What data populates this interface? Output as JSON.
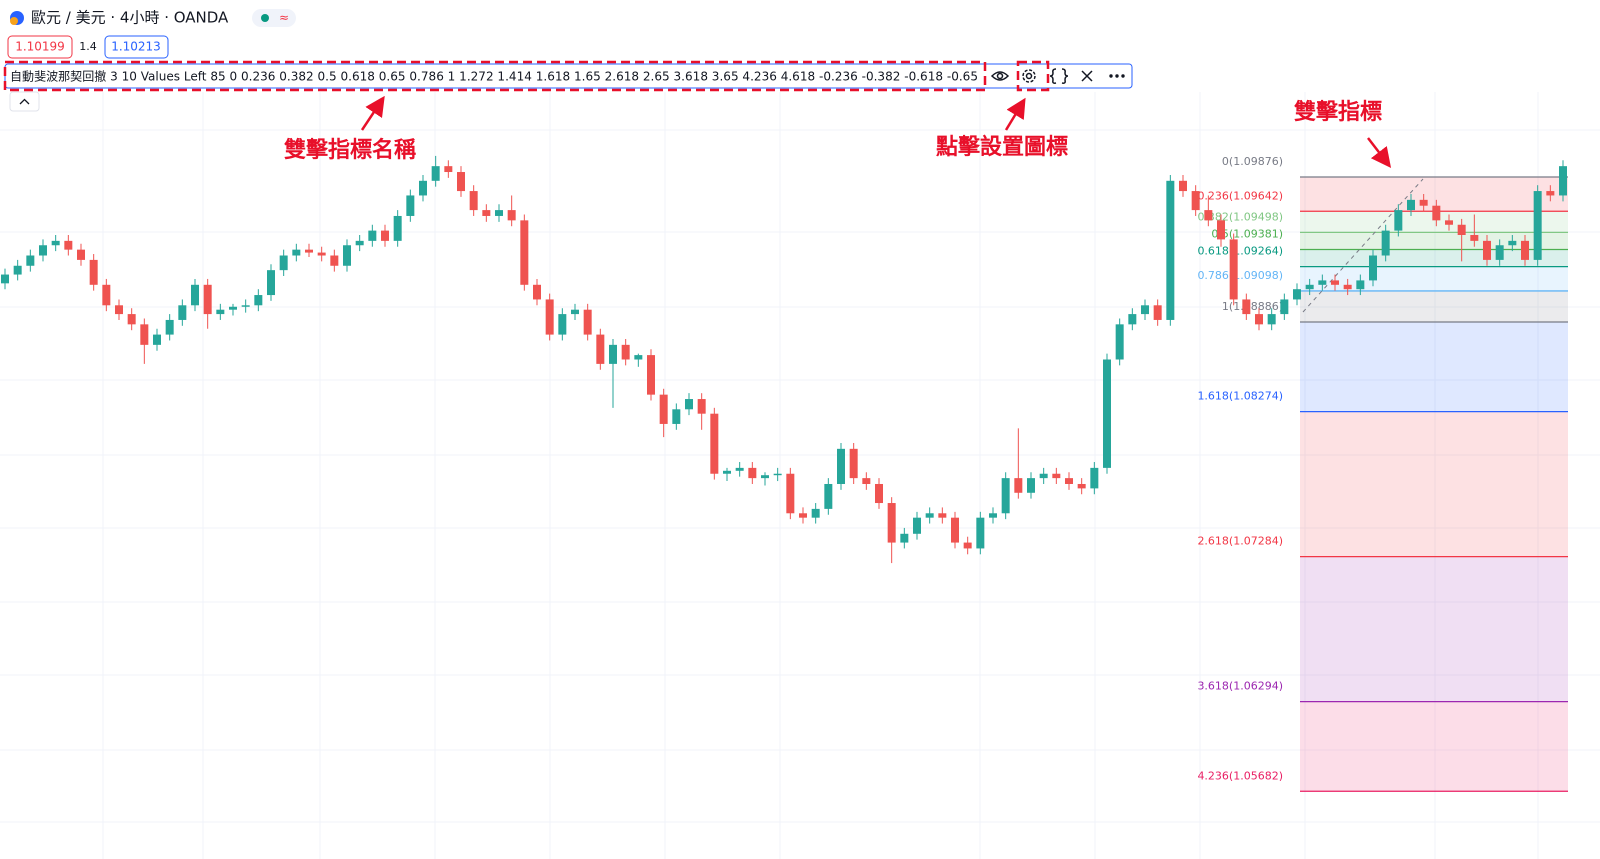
{
  "header": {
    "symbol": "歐元 / 美元 · 4小時 · OANDA",
    "sell_price": "1.10199",
    "spread": "1.4",
    "buy_price": "1.10213"
  },
  "indicator_legend": "自動斐波那契回撤 3 10 Values Left 85 0 0.236 0.382 0.5 0.618 0.65 0.786 1 1.272 1.414 1.618 1.65 2.618 2.65 3.618 3.65 4.236 4.618 -0.236 -0.382 -0.618 -0.65",
  "annotations": [
    "雙擊指標名稱",
    "點擊設置圖標",
    "雙擊指標"
  ],
  "chart_data": {
    "type": "candlestick",
    "up_color": "#26a69a",
    "down_color": "#ef5350",
    "candles": [
      [
        1.0915,
        1.0925,
        1.0911,
        1.0921
      ],
      [
        1.0921,
        1.0931,
        1.0917,
        1.0927
      ],
      [
        1.0927,
        1.0938,
        1.0923,
        1.0934
      ],
      [
        1.0934,
        1.0945,
        1.093,
        1.0941
      ],
      [
        1.0941,
        1.0948,
        1.0937,
        1.0944
      ],
      [
        1.0944,
        1.0948,
        1.0934,
        1.0938
      ],
      [
        1.0938,
        1.0942,
        1.0927,
        1.0931
      ],
      [
        1.0931,
        1.0935,
        1.091,
        1.0914
      ],
      [
        1.0914,
        1.0918,
        1.0896,
        1.09
      ],
      [
        1.09,
        1.0904,
        1.089,
        1.0894
      ],
      [
        1.0894,
        1.0898,
        1.0883,
        1.0887
      ],
      [
        1.0887,
        1.0891,
        1.086,
        1.0873
      ],
      [
        1.0873,
        1.0884,
        1.0869,
        1.088
      ],
      [
        1.088,
        1.0894,
        1.0876,
        1.089
      ],
      [
        1.089,
        1.0904,
        1.0886,
        1.09
      ],
      [
        1.09,
        1.0918,
        1.0896,
        1.0914
      ],
      [
        1.0914,
        1.0918,
        1.0884,
        1.0894
      ],
      [
        1.0894,
        1.0901,
        1.089,
        1.0897
      ],
      [
        1.0897,
        1.0901,
        1.0893,
        1.0899
      ],
      [
        1.0899,
        1.0904,
        1.0895,
        1.09
      ],
      [
        1.09,
        1.0911,
        1.0896,
        1.0907
      ],
      [
        1.0907,
        1.0928,
        1.0903,
        1.0924
      ],
      [
        1.0924,
        1.0938,
        1.092,
        1.0934
      ],
      [
        1.0934,
        1.0942,
        1.093,
        1.0938
      ],
      [
        1.0938,
        1.0942,
        1.0933,
        1.0936
      ],
      [
        1.0936,
        1.094,
        1.093,
        1.0934
      ],
      [
        1.0934,
        1.0938,
        1.0923,
        1.0927
      ],
      [
        1.0927,
        1.0945,
        1.0923,
        1.0941
      ],
      [
        1.0941,
        1.0948,
        1.0937,
        1.0944
      ],
      [
        1.0944,
        1.0955,
        1.094,
        1.0951
      ],
      [
        1.0951,
        1.0955,
        1.094,
        1.0944
      ],
      [
        1.0944,
        1.0965,
        1.094,
        1.0961
      ],
      [
        1.0961,
        1.0979,
        1.0957,
        1.0975
      ],
      [
        1.0975,
        1.0989,
        1.0971,
        1.0985
      ],
      [
        1.0985,
        1.1002,
        1.0981,
        1.0995
      ],
      [
        1.0995,
        1.0999,
        1.0987,
        1.0991
      ],
      [
        1.0991,
        1.0995,
        1.0974,
        1.0978
      ],
      [
        1.0978,
        1.0982,
        1.0961,
        1.0965
      ],
      [
        1.0965,
        1.0969,
        1.0957,
        1.0961
      ],
      [
        1.0961,
        1.0969,
        1.0957,
        1.0965
      ],
      [
        1.0965,
        1.0975,
        1.0954,
        1.0958
      ],
      [
        1.0958,
        1.0962,
        1.091,
        1.0914
      ],
      [
        1.0914,
        1.0918,
        1.09,
        1.0904
      ],
      [
        1.0904,
        1.0908,
        1.0876,
        1.088
      ],
      [
        1.088,
        1.0898,
        1.0876,
        1.0894
      ],
      [
        1.0894,
        1.0901,
        1.089,
        1.0897
      ],
      [
        1.0897,
        1.0901,
        1.0876,
        1.088
      ],
      [
        1.088,
        1.0884,
        1.0856,
        1.086
      ],
      [
        1.086,
        1.0877,
        1.083,
        1.0873
      ],
      [
        1.0873,
        1.0877,
        1.0859,
        1.0863
      ],
      [
        1.0863,
        1.0867,
        1.0858,
        1.0866
      ],
      [
        1.0866,
        1.087,
        1.0835,
        1.0839
      ],
      [
        1.0839,
        1.0843,
        1.081,
        1.0819
      ],
      [
        1.0819,
        1.0833,
        1.0815,
        1.0829
      ],
      [
        1.0829,
        1.084,
        1.0825,
        1.0836
      ],
      [
        1.0836,
        1.084,
        1.0815,
        1.0826
      ],
      [
        1.0826,
        1.083,
        1.0781,
        1.0785
      ],
      [
        1.0785,
        1.0789,
        1.078,
        1.0787
      ],
      [
        1.0787,
        1.0793,
        1.0783,
        1.0789
      ],
      [
        1.0789,
        1.0793,
        1.0778,
        1.0782
      ],
      [
        1.0782,
        1.0786,
        1.0777,
        1.0784
      ],
      [
        1.0784,
        1.0789,
        1.078,
        1.0785
      ],
      [
        1.0785,
        1.0789,
        1.0754,
        1.0758
      ],
      [
        1.0758,
        1.0762,
        1.0751,
        1.0755
      ],
      [
        1.0755,
        1.0765,
        1.0751,
        1.0761
      ],
      [
        1.0761,
        1.0782,
        1.0757,
        1.0778
      ],
      [
        1.0778,
        1.0806,
        1.0774,
        1.0802
      ],
      [
        1.0802,
        1.0806,
        1.0778,
        1.0782
      ],
      [
        1.0782,
        1.0786,
        1.0774,
        1.0778
      ],
      [
        1.0778,
        1.0782,
        1.0761,
        1.0765
      ],
      [
        1.0765,
        1.0769,
        1.0724,
        1.0738
      ],
      [
        1.0738,
        1.0748,
        1.0734,
        1.0744
      ],
      [
        1.0744,
        1.0759,
        1.074,
        1.0755
      ],
      [
        1.0755,
        1.0762,
        1.0751,
        1.0758
      ],
      [
        1.0758,
        1.0762,
        1.0751,
        1.0755
      ],
      [
        1.0755,
        1.0759,
        1.0734,
        1.0738
      ],
      [
        1.0738,
        1.0742,
        1.073,
        1.0734
      ],
      [
        1.0734,
        1.0759,
        1.073,
        1.0755
      ],
      [
        1.0755,
        1.0762,
        1.0751,
        1.0758
      ],
      [
        1.0758,
        1.0786,
        1.0754,
        1.0782
      ],
      [
        1.0782,
        1.0816,
        1.0768,
        1.0772
      ],
      [
        1.0772,
        1.0786,
        1.0768,
        1.0782
      ],
      [
        1.0782,
        1.0789,
        1.0778,
        1.0785
      ],
      [
        1.0785,
        1.0789,
        1.0778,
        1.0782
      ],
      [
        1.0782,
        1.0786,
        1.0774,
        1.0778
      ],
      [
        1.0778,
        1.0782,
        1.0771,
        1.0775
      ],
      [
        1.0775,
        1.0793,
        1.0771,
        1.0789
      ],
      [
        1.0789,
        1.0867,
        1.0785,
        1.0863
      ],
      [
        1.0863,
        1.0891,
        1.0859,
        1.0887
      ],
      [
        1.0887,
        1.0898,
        1.0883,
        1.0894
      ],
      [
        1.0894,
        1.0904,
        1.089,
        1.09
      ],
      [
        1.09,
        1.0904,
        1.0886,
        1.089
      ],
      [
        1.089,
        1.0989,
        1.0886,
        1.0985
      ],
      [
        1.0985,
        1.0989,
        1.0974,
        1.0978
      ],
      [
        1.0978,
        1.0982,
        1.0961,
        1.0965
      ],
      [
        1.0965,
        1.0975,
        1.0954,
        1.0958
      ],
      [
        1.0958,
        1.0962,
        1.094,
        1.0945
      ],
      [
        1.0945,
        1.0949,
        1.09,
        1.0904
      ],
      [
        1.0904,
        1.0908,
        1.089,
        1.0894
      ],
      [
        1.0894,
        1.0898,
        1.0883,
        1.0887
      ],
      [
        1.0887,
        1.0898,
        1.0883,
        1.0894
      ],
      [
        1.0894,
        1.0908,
        1.089,
        1.0904
      ],
      [
        1.0904,
        1.0915,
        1.09,
        1.0911
      ],
      [
        1.0911,
        1.0918,
        1.0907,
        1.0914
      ],
      [
        1.0914,
        1.0921,
        1.091,
        1.0917
      ],
      [
        1.0917,
        1.0921,
        1.091,
        1.0914
      ],
      [
        1.0914,
        1.0918,
        1.0907,
        1.0911
      ],
      [
        1.0911,
        1.0921,
        1.0907,
        1.0917
      ],
      [
        1.0917,
        1.0938,
        1.0913,
        1.0934
      ],
      [
        1.0934,
        1.0955,
        1.093,
        1.0951
      ],
      [
        1.0951,
        1.0969,
        1.0947,
        1.0965
      ],
      [
        1.0965,
        1.0976,
        1.0961,
        1.0972
      ],
      [
        1.0972,
        1.0976,
        1.0964,
        1.0968
      ],
      [
        1.0968,
        1.0972,
        1.0954,
        1.0958
      ],
      [
        1.0958,
        1.0962,
        1.0951,
        1.0955
      ],
      [
        1.0955,
        1.0959,
        1.093,
        1.0948
      ],
      [
        1.0948,
        1.0962,
        1.094,
        1.0944
      ],
      [
        1.0944,
        1.0948,
        1.0927,
        1.0931
      ],
      [
        1.0931,
        1.0945,
        1.0927,
        1.0941
      ],
      [
        1.0941,
        1.0948,
        1.0937,
        1.0944
      ],
      [
        1.0944,
        1.0948,
        1.0927,
        1.0931
      ],
      [
        1.0931,
        1.0982,
        1.0927,
        1.0978
      ],
      [
        1.0978,
        1.0982,
        1.0971,
        1.0975
      ],
      [
        1.0975,
        1.0999,
        1.0971,
        1.0995
      ]
    ],
    "fib_levels": [
      {
        "price": 1.09876,
        "label": "0(1.09876)",
        "color": "#787b86"
      },
      {
        "price": 1.09642,
        "label": "0.236(1.09642)",
        "color": "#f23645"
      },
      {
        "price": 1.09498,
        "label": "0.382(1.09498)",
        "color": "#81c784"
      },
      {
        "price": 1.09381,
        "label": "0.5(1.09381)",
        "color": "#4caf50"
      },
      {
        "price": 1.09264,
        "label": "0.618(1.09264)",
        "color": "#089981"
      },
      {
        "price": 1.09098,
        "label": "0.786(1.09098)",
        "color": "#64b5f6"
      },
      {
        "price": 1.08886,
        "label": "1(1.08886)",
        "color": "#787b86"
      },
      {
        "price": 1.08274,
        "label": "1.618(1.08274)",
        "color": "#2962ff"
      },
      {
        "price": 1.07284,
        "label": "2.618(1.07284)",
        "color": "#f23645"
      },
      {
        "price": 1.06294,
        "label": "3.618(1.06294)",
        "color": "#9c27b0"
      },
      {
        "price": 1.05682,
        "label": "4.236(1.05682)",
        "color": "#e91e63"
      }
    ]
  }
}
